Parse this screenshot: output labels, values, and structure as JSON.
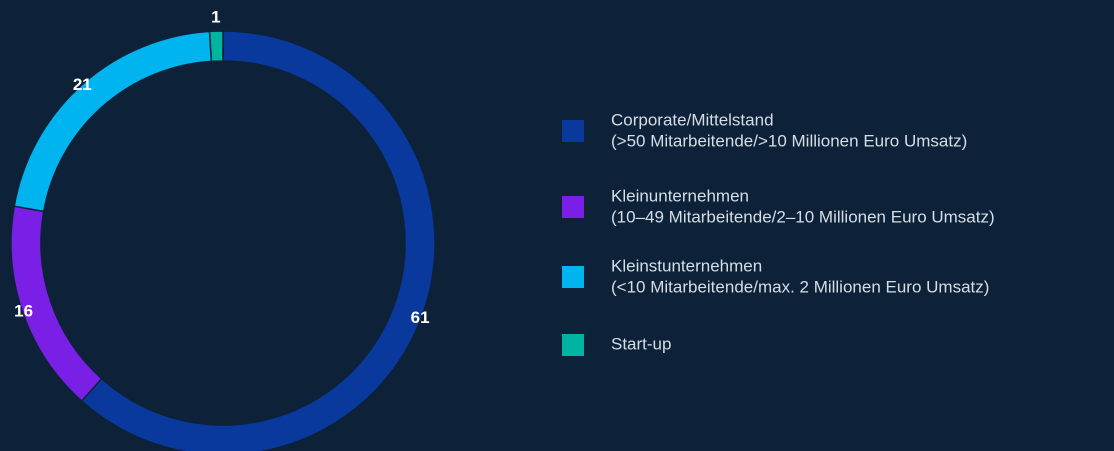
{
  "chart_data": {
    "type": "donut",
    "categories": [
      "Corporate/Mittelstand",
      "Kleinunternehmen",
      "Kleinstunternehmen",
      "Start-up"
    ],
    "descriptions": [
      "(>50 Mitarbeitende/>10 Millionen Euro Umsatz)",
      "(10–49 Mitarbeitende/2–10 Millionen Euro Umsatz)",
      "(<10 Mitarbeitende/max. 2 Millionen Euro Umsatz)",
      null
    ],
    "values": [
      61,
      16,
      21,
      1
    ],
    "colors": [
      "#0a399d",
      "#7a1fe6",
      "#00b4f0",
      "#00b4a2"
    ]
  }
}
